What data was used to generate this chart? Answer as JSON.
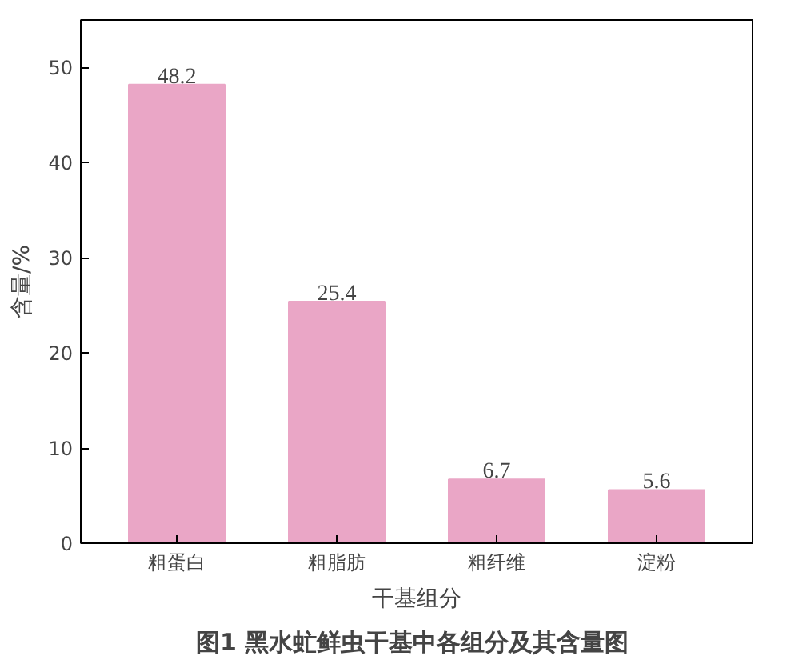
{
  "chart_data": {
    "type": "bar",
    "title": "图1  黑水虻鲜虫干基中各组分及其含量图",
    "xlabel": "干基组分",
    "ylabel": "含量/%",
    "categories": [
      "粗蛋白",
      "粗脂肪",
      "粗纤维",
      "淀粉"
    ],
    "values": [
      48.2,
      25.4,
      6.7,
      5.6
    ],
    "color": "#eaa6c6",
    "ylim": [
      0,
      55
    ],
    "yticks": [
      0,
      10,
      20,
      30,
      40,
      50
    ],
    "grid": false,
    "data_labels": true
  }
}
